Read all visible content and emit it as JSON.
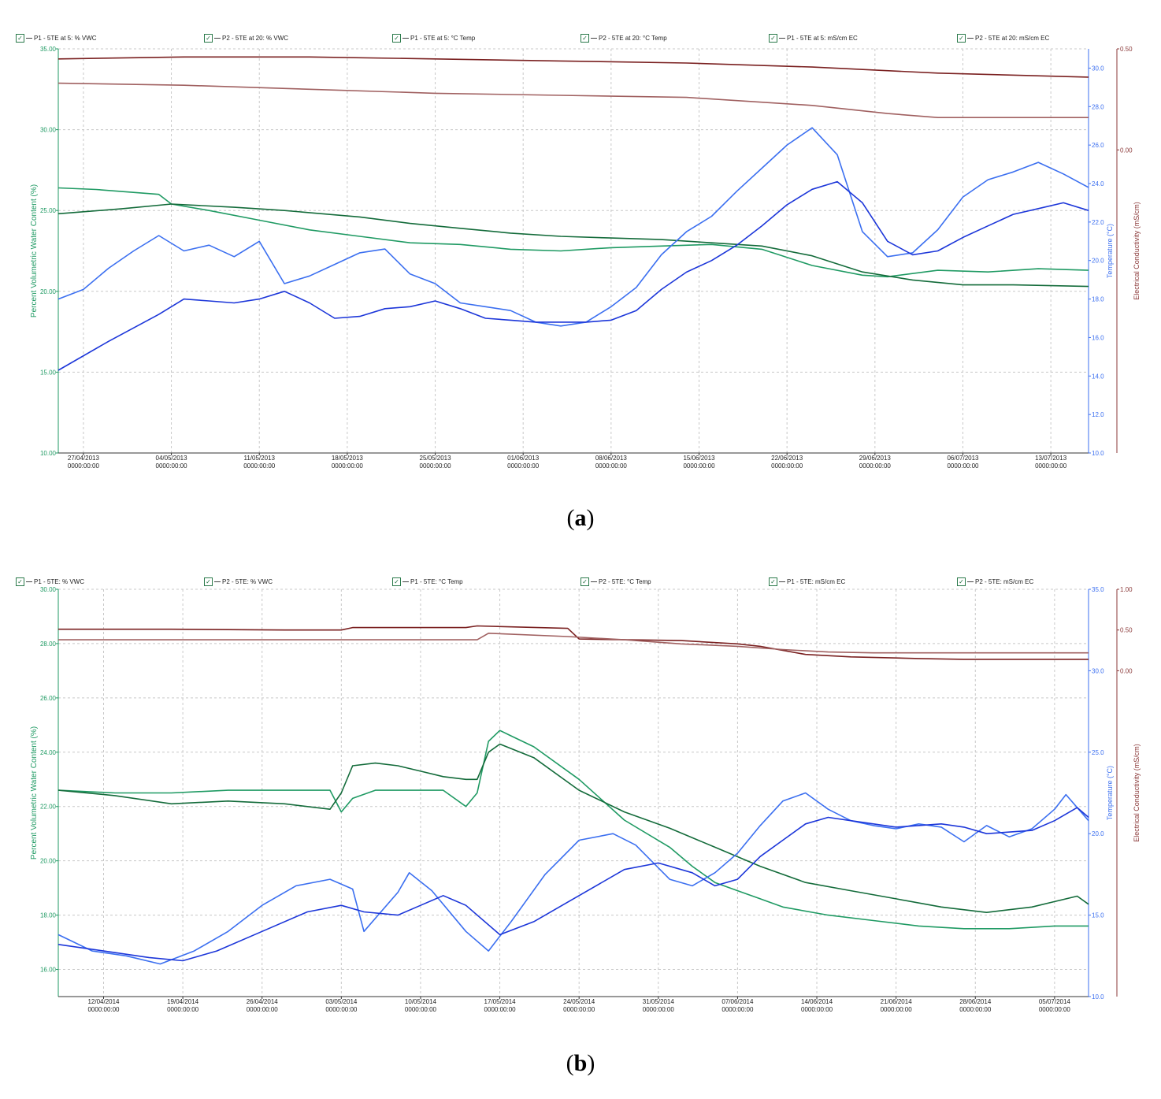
{
  "colors": {
    "vwc_p1": "#1f9a63",
    "vwc_p2": "#136b3a",
    "temp_p1": "#3b6ff0",
    "temp_p2": "#1c36d9",
    "ec_p1": "#7a2020",
    "ec_p2": "#a06060",
    "axis_left": "#1f9a63",
    "axis_temp": "#3b6ff0",
    "axis_ec": "#8b3a3a",
    "grid": "#c8c8c8"
  },
  "captions": {
    "a": "a",
    "b": "b"
  },
  "chart_data": [
    {
      "type": "line",
      "panel": "a",
      "legend": [
        "P1 - 5TE at 5: % VWC",
        "P2 - 5TE at 20: % VWC",
        "P1 - 5TE at 5: °C Temp",
        "P2 - 5TE at 20: °C Temp",
        "P1 - 5TE at 5: mS/cm EC",
        "P2 - 5TE at 20: mS/cm EC"
      ],
      "x_start_day": 0,
      "x_end_day": 82,
      "x_ticks": [
        {
          "day": 2,
          "date": "27/04/2013",
          "time": "0000:00:00"
        },
        {
          "day": 9,
          "date": "04/05/2013",
          "time": "0000:00:00"
        },
        {
          "day": 16,
          "date": "11/05/2013",
          "time": "0000:00:00"
        },
        {
          "day": 23,
          "date": "18/05/2013",
          "time": "0000:00:00"
        },
        {
          "day": 30,
          "date": "25/05/2013",
          "time": "0000:00:00"
        },
        {
          "day": 37,
          "date": "01/06/2013",
          "time": "0000:00:00"
        },
        {
          "day": 44,
          "date": "08/06/2013",
          "time": "0000:00:00"
        },
        {
          "day": 51,
          "date": "15/06/2013",
          "time": "0000:00:00"
        },
        {
          "day": 58,
          "date": "22/06/2013",
          "time": "0000:00:00"
        },
        {
          "day": 65,
          "date": "29/06/2013",
          "time": "0000:00:00"
        },
        {
          "day": 72,
          "date": "06/07/2013",
          "time": "0000:00:00"
        },
        {
          "day": 79,
          "date": "13/07/2013",
          "time": "0000:00:00"
        }
      ],
      "y_left": {
        "label": "Percent Volumetric Water Content (%)",
        "min": 10,
        "max": 35,
        "ticks": [
          "10.00",
          "15.00",
          "20.00",
          "25.00",
          "30.00",
          "35.00"
        ]
      },
      "y_temp": {
        "label": "Temperature (°C)",
        "min": 10,
        "max": 31,
        "ticks": [
          "10.0",
          "12.0",
          "14.0",
          "16.0",
          "18.0",
          "20.0",
          "22.0",
          "24.0",
          "26.0",
          "28.0",
          "30.0"
        ]
      },
      "y_ec": {
        "label": "Electrical Conductivity (mS/cm)",
        "min": -1.5,
        "max": 0.5,
        "ticks": [
          "0.00",
          "0.50"
        ]
      },
      "series": [
        {
          "name": "P1 - 5TE at 5: % VWC",
          "axis": "left",
          "color_key": "vwc_p1",
          "x": [
            0,
            3,
            8,
            9,
            12,
            16,
            20,
            24,
            28,
            32,
            36,
            40,
            44,
            48,
            52,
            56,
            60,
            64,
            66,
            70,
            74,
            78,
            82
          ],
          "y": [
            26.4,
            26.3,
            26.0,
            25.4,
            25.0,
            24.4,
            23.8,
            23.4,
            23.0,
            22.9,
            22.6,
            22.5,
            22.7,
            22.8,
            22.9,
            22.6,
            21.6,
            21.0,
            20.9,
            21.3,
            21.2,
            21.4,
            21.3
          ]
        },
        {
          "name": "P2 - 5TE at 20: % VWC",
          "axis": "left",
          "color_key": "vwc_p2",
          "x": [
            0,
            5,
            9,
            14,
            18,
            24,
            28,
            32,
            36,
            40,
            44,
            48,
            52,
            56,
            60,
            64,
            68,
            72,
            76,
            82
          ],
          "y": [
            24.8,
            25.1,
            25.4,
            25.2,
            25.0,
            24.6,
            24.2,
            23.9,
            23.6,
            23.4,
            23.3,
            23.2,
            23.0,
            22.8,
            22.2,
            21.2,
            20.7,
            20.4,
            20.4,
            20.3
          ]
        },
        {
          "name": "P1 - 5TE at 5: °C Temp",
          "axis": "temp",
          "color_key": "temp_p1",
          "x": [
            0,
            2,
            4,
            6,
            8,
            10,
            12,
            14,
            16,
            18,
            20,
            22,
            24,
            26,
            28,
            30,
            32,
            34,
            36,
            38,
            40,
            42,
            44,
            46,
            48,
            50,
            52,
            54,
            56,
            58,
            60,
            62,
            64,
            66,
            68,
            70,
            72,
            74,
            76,
            78,
            80,
            82
          ],
          "y": [
            18.0,
            18.5,
            19.6,
            20.5,
            21.3,
            20.5,
            20.8,
            20.2,
            21.0,
            18.8,
            19.2,
            19.8,
            20.4,
            20.6,
            19.3,
            18.8,
            17.8,
            17.6,
            17.4,
            16.8,
            16.6,
            16.8,
            17.6,
            18.6,
            20.3,
            21.5,
            22.3,
            23.6,
            24.8,
            26.0,
            26.9,
            25.5,
            21.5,
            20.2,
            20.4,
            21.6,
            23.3,
            24.2,
            24.6,
            25.1,
            24.5,
            23.8
          ]
        },
        {
          "name": "P2 - 5TE at 20: °C Temp",
          "axis": "temp",
          "color_key": "temp_p2",
          "x": [
            0,
            4,
            8,
            10,
            12,
            14,
            16,
            18,
            20,
            22,
            24,
            26,
            28,
            30,
            32,
            34,
            36,
            38,
            40,
            42,
            44,
            46,
            48,
            50,
            52,
            54,
            56,
            58,
            60,
            62,
            64,
            66,
            68,
            70,
            72,
            74,
            76,
            78,
            80,
            82
          ],
          "y": [
            14.3,
            15.8,
            17.2,
            18.0,
            17.9,
            17.8,
            18.0,
            18.4,
            17.8,
            17.0,
            17.1,
            17.5,
            17.6,
            17.9,
            17.5,
            17.0,
            16.9,
            16.8,
            16.8,
            16.8,
            16.9,
            17.4,
            18.5,
            19.4,
            20.0,
            20.8,
            21.8,
            22.9,
            23.7,
            24.1,
            23.0,
            21.0,
            20.3,
            20.5,
            21.2,
            21.8,
            22.4,
            22.7,
            23.0,
            22.6
          ]
        },
        {
          "name": "P1 - 5TE at 5: mS/cm EC",
          "axis": "ec",
          "color_key": "ec_p1",
          "x": [
            0,
            10,
            20,
            30,
            40,
            50,
            60,
            70,
            82
          ],
          "y": [
            0.45,
            0.46,
            0.46,
            0.45,
            0.44,
            0.43,
            0.41,
            0.38,
            0.36
          ]
        },
        {
          "name": "P2 - 5TE at 20: mS/cm EC",
          "axis": "ec",
          "color_key": "ec_p2",
          "x": [
            0,
            10,
            20,
            30,
            40,
            50,
            60,
            66,
            70,
            82
          ],
          "y": [
            0.33,
            0.32,
            0.3,
            0.28,
            0.27,
            0.26,
            0.22,
            0.18,
            0.16,
            0.16
          ]
        }
      ]
    },
    {
      "type": "line",
      "panel": "b",
      "legend": [
        "P1 - 5TE: % VWC",
        "P2 - 5TE: % VWC",
        "P1 - 5TE: °C Temp",
        "P2 - 5TE: °C Temp",
        "P1 - 5TE: mS/cm EC",
        "P2 - 5TE: mS/cm EC"
      ],
      "x_start_day": 0,
      "x_end_day": 91,
      "x_ticks": [
        {
          "day": 4,
          "date": "12/04/2014",
          "time": "0000:00:00"
        },
        {
          "day": 11,
          "date": "19/04/2014",
          "time": "0000:00:00"
        },
        {
          "day": 18,
          "date": "26/04/2014",
          "time": "0000:00:00"
        },
        {
          "day": 25,
          "date": "03/05/2014",
          "time": "0000:00:00"
        },
        {
          "day": 32,
          "date": "10/05/2014",
          "time": "0000:00:00"
        },
        {
          "day": 39,
          "date": "17/05/2014",
          "time": "0000:00:00"
        },
        {
          "day": 46,
          "date": "24/05/2014",
          "time": "0000:00:00"
        },
        {
          "day": 53,
          "date": "31/05/2014",
          "time": "0000:00:00"
        },
        {
          "day": 60,
          "date": "07/06/2014",
          "time": "0000:00:00"
        },
        {
          "day": 67,
          "date": "14/06/2014",
          "time": "0000:00:00"
        },
        {
          "day": 74,
          "date": "21/06/2014",
          "time": "0000:00:00"
        },
        {
          "day": 81,
          "date": "28/06/2014",
          "time": "0000:00:00"
        },
        {
          "day": 88,
          "date": "05/07/2014",
          "time": "0000:00:00"
        }
      ],
      "y_left": {
        "label": "Percent Volumetric Water Content (%)",
        "min": 15,
        "max": 30,
        "ticks": [
          "16.00",
          "18.00",
          "20.00",
          "22.00",
          "24.00",
          "26.00",
          "28.00",
          "30.00"
        ]
      },
      "y_temp": {
        "label": "Temperature (°C)",
        "min": 10,
        "max": 35,
        "ticks": [
          "10.0",
          "15.0",
          "20.0",
          "25.0",
          "30.0",
          "35.0"
        ]
      },
      "y_ec": {
        "label": "Electrical Conductivity (mS/cm)",
        "min": -4.0,
        "max": 1.0,
        "ticks": [
          "0.00",
          "0.50",
          "1.00"
        ]
      },
      "series": [
        {
          "name": "P1 - 5TE: % VWC",
          "axis": "left",
          "color_key": "vwc_p1",
          "x": [
            0,
            5,
            10,
            15,
            20,
            24,
            25,
            26,
            28,
            30,
            32,
            34,
            36,
            37,
            38,
            39,
            40,
            42,
            46,
            50,
            54,
            56,
            58,
            60,
            62,
            64,
            68,
            72,
            76,
            80,
            84,
            88,
            91
          ],
          "y": [
            22.6,
            22.5,
            22.5,
            22.6,
            22.6,
            22.6,
            21.8,
            22.3,
            22.6,
            22.6,
            22.6,
            22.6,
            22.0,
            22.5,
            24.4,
            24.8,
            24.6,
            24.2,
            23.0,
            21.5,
            20.5,
            19.8,
            19.2,
            18.9,
            18.6,
            18.3,
            18.0,
            17.8,
            17.6,
            17.5,
            17.5,
            17.6,
            17.6
          ]
        },
        {
          "name": "P2 - 5TE: % VWC",
          "axis": "left",
          "color_key": "vwc_p2",
          "x": [
            0,
            5,
            10,
            15,
            20,
            24,
            25,
            26,
            28,
            30,
            32,
            34,
            36,
            37,
            38,
            39,
            42,
            46,
            50,
            54,
            58,
            62,
            66,
            70,
            74,
            78,
            82,
            86,
            88,
            90,
            91
          ],
          "y": [
            22.6,
            22.4,
            22.1,
            22.2,
            22.1,
            21.9,
            22.5,
            23.5,
            23.6,
            23.5,
            23.3,
            23.1,
            23.0,
            23.0,
            24.0,
            24.3,
            23.8,
            22.6,
            21.8,
            21.2,
            20.5,
            19.8,
            19.2,
            18.9,
            18.6,
            18.3,
            18.1,
            18.3,
            18.5,
            18.7,
            18.4
          ]
        },
        {
          "name": "P1 - 5TE: °C Temp",
          "axis": "temp",
          "color_key": "temp_p1",
          "x": [
            0,
            3,
            6,
            9,
            12,
            15,
            18,
            21,
            24,
            26,
            27,
            30,
            31,
            33,
            36,
            38,
            40,
            43,
            46,
            49,
            51,
            54,
            56,
            58,
            60,
            62,
            64,
            66,
            68,
            70,
            72,
            74,
            76,
            78,
            80,
            82,
            84,
            86,
            88,
            89,
            91
          ],
          "y": [
            13.8,
            12.8,
            12.5,
            12.0,
            12.8,
            14.0,
            15.6,
            16.8,
            17.2,
            16.6,
            14.0,
            16.4,
            17.6,
            16.5,
            14.0,
            12.8,
            14.6,
            17.5,
            19.6,
            20.0,
            19.3,
            17.2,
            16.8,
            17.6,
            18.8,
            20.5,
            22.0,
            22.5,
            21.5,
            20.8,
            20.5,
            20.3,
            20.6,
            20.4,
            19.5,
            20.5,
            19.8,
            20.3,
            21.5,
            22.4,
            20.8
          ]
        },
        {
          "name": "P2 - 5TE: °C Temp",
          "axis": "temp",
          "color_key": "temp_p2",
          "x": [
            0,
            4,
            8,
            11,
            14,
            18,
            22,
            25,
            27,
            30,
            32,
            34,
            36,
            39,
            42,
            46,
            50,
            53,
            56,
            58,
            60,
            62,
            64,
            66,
            68,
            70,
            74,
            78,
            80,
            82,
            86,
            88,
            90,
            91
          ],
          "y": [
            13.2,
            12.8,
            12.4,
            12.2,
            12.8,
            14.0,
            15.2,
            15.6,
            15.2,
            15.0,
            15.6,
            16.2,
            15.6,
            13.8,
            14.6,
            16.2,
            17.8,
            18.2,
            17.6,
            16.8,
            17.2,
            18.6,
            19.6,
            20.6,
            21.0,
            20.8,
            20.4,
            20.6,
            20.4,
            20.0,
            20.2,
            20.8,
            21.6,
            21.0
          ]
        },
        {
          "name": "P1 - 5TE: mS/cm EC",
          "axis": "ec",
          "color_key": "ec_p1",
          "x": [
            0,
            10,
            20,
            25,
            26,
            36,
            37,
            45,
            46,
            55,
            60,
            62,
            66,
            70,
            76,
            80,
            91
          ],
          "y": [
            0.51,
            0.51,
            0.5,
            0.5,
            0.53,
            0.53,
            0.55,
            0.52,
            0.39,
            0.37,
            0.33,
            0.3,
            0.2,
            0.17,
            0.15,
            0.14,
            0.14
          ]
        },
        {
          "name": "P2 - 5TE: mS/cm EC",
          "axis": "ec",
          "color_key": "ec_p2",
          "x": [
            0,
            10,
            20,
            30,
            37,
            38,
            45,
            50,
            55,
            60,
            64,
            68,
            72,
            80,
            91
          ],
          "y": [
            0.38,
            0.38,
            0.38,
            0.38,
            0.38,
            0.46,
            0.42,
            0.38,
            0.33,
            0.3,
            0.26,
            0.23,
            0.22,
            0.22,
            0.22
          ]
        }
      ]
    }
  ]
}
